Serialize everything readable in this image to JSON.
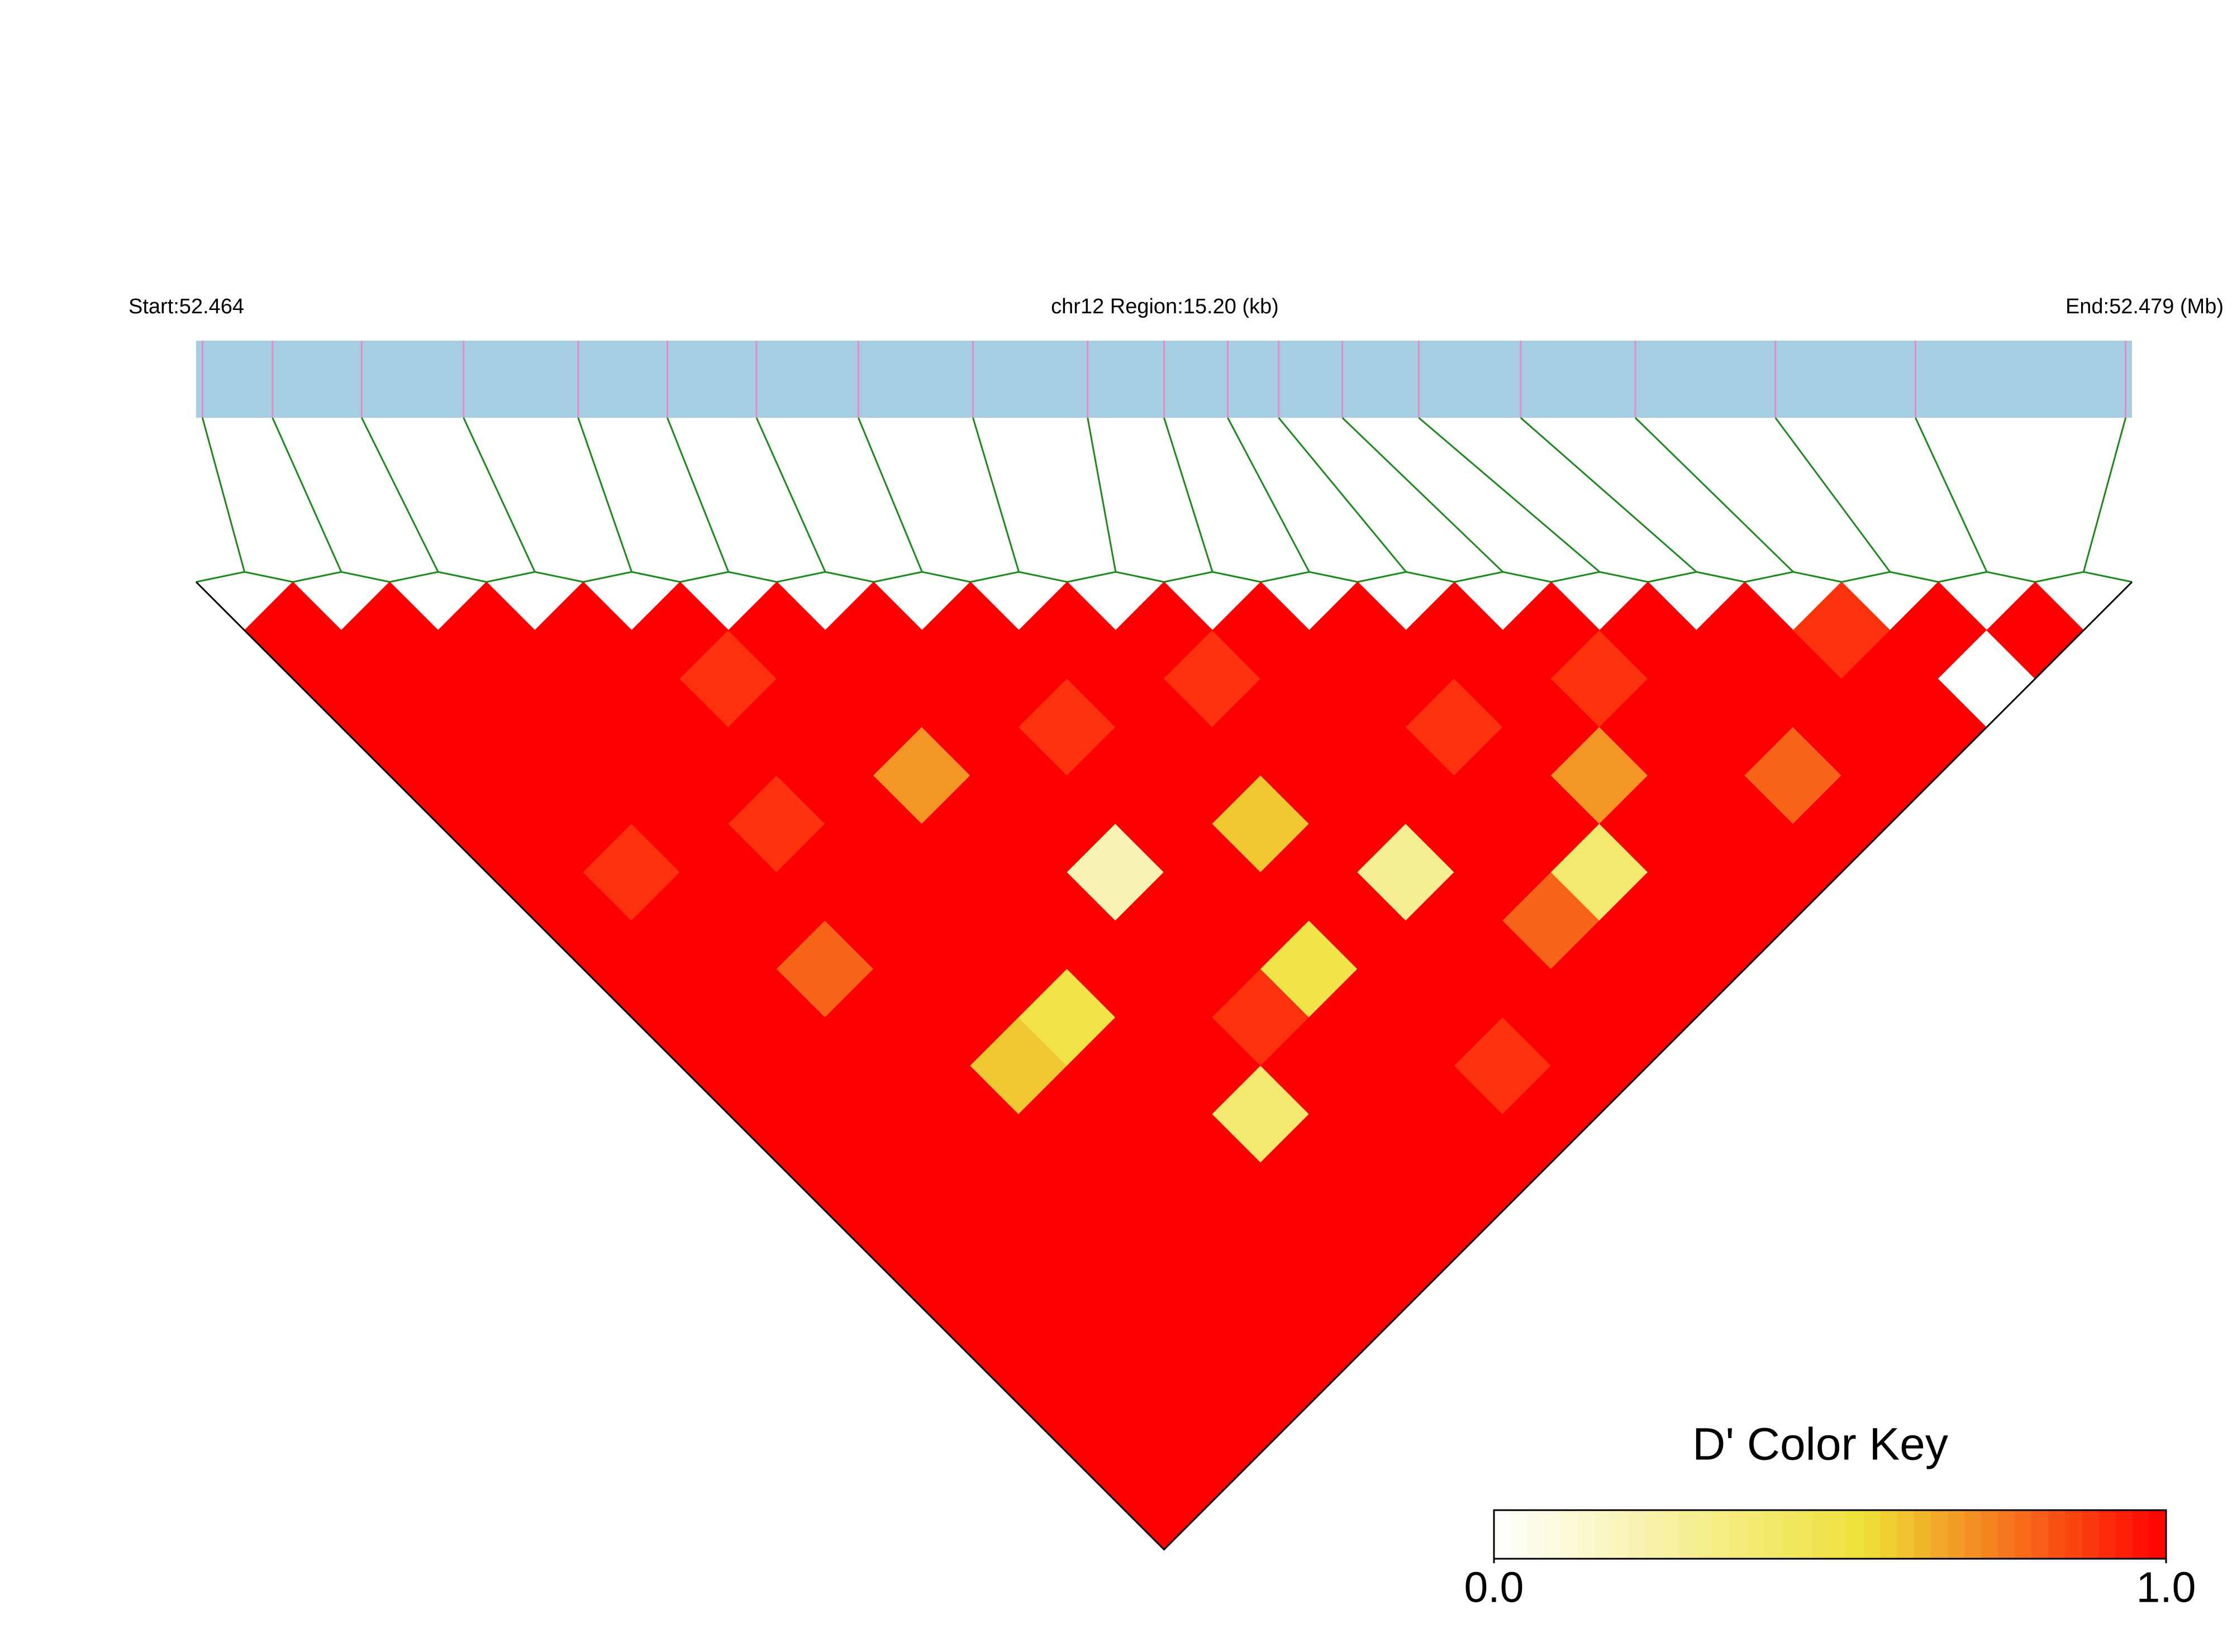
{
  "chart_data": {
    "type": "ld_heatmap",
    "start_label": "Start:52.464",
    "title": "chr12 Region:15.20 (kb)",
    "end_label": "End:52.479 (Mb)",
    "xlim": [
      0,
      15.2
    ],
    "positions": [
      0.05,
      0.6,
      1.3,
      2.1,
      3.0,
      3.7,
      4.4,
      5.2,
      6.1,
      7.0,
      7.6,
      8.1,
      8.5,
      9.0,
      9.6,
      10.4,
      11.3,
      12.4,
      13.5,
      15.15
    ],
    "dprime": [
      [
        1,
        1,
        1,
        1,
        1,
        1,
        1,
        1,
        1,
        1,
        1,
        1,
        1,
        1,
        1,
        1,
        1,
        1,
        1
      ],
      [
        1,
        1,
        1,
        1,
        1,
        0.9,
        1,
        1,
        1,
        1,
        1,
        1,
        1,
        1,
        1,
        1,
        1,
        1
      ],
      [
        1,
        1,
        1,
        1,
        1,
        1,
        1,
        0.8,
        1,
        1,
        1,
        1,
        1,
        1,
        1,
        1,
        1
      ],
      [
        1,
        1,
        1,
        1,
        0.9,
        1,
        1,
        1,
        1,
        0.6,
        1,
        1,
        1,
        1,
        1,
        1
      ],
      [
        1,
        0.9,
        1,
        1,
        1,
        1,
        1,
        1,
        0.5,
        1,
        1,
        1,
        1,
        1,
        1
      ],
      [
        1,
        1,
        1,
        0.7,
        1,
        1,
        1,
        1,
        1,
        1,
        0.4,
        1,
        1,
        1
      ],
      [
        1,
        1,
        1,
        1,
        1,
        0.2,
        1,
        1,
        0.9,
        1,
        1,
        1,
        1
      ],
      [
        1,
        1,
        0.9,
        1,
        1,
        1,
        1,
        0.5,
        1,
        1,
        1,
        1
      ],
      [
        1,
        1,
        1,
        1,
        0.6,
        1,
        1,
        1,
        1,
        0.9,
        1
      ],
      [
        1,
        0.9,
        1,
        1,
        1,
        0.3,
        1,
        1,
        1,
        1
      ],
      [
        1,
        1,
        1,
        1,
        1,
        1,
        0.8,
        1,
        1
      ],
      [
        1,
        1,
        0.9,
        1,
        1,
        0.4,
        1,
        1
      ],
      [
        1,
        1,
        1,
        0.7,
        1,
        1,
        1
      ],
      [
        1,
        0.9,
        1,
        1,
        1,
        1
      ],
      [
        1,
        1,
        1,
        0.8,
        1
      ],
      [
        1,
        1,
        1,
        1
      ],
      [
        0.9,
        1,
        1
      ],
      [
        1,
        0
      ],
      [
        1
      ]
    ],
    "colorkey": {
      "title": "D' Color Key",
      "range": [
        0,
        1
      ],
      "ticks": [
        {
          "value": 0,
          "label": "0.0"
        },
        {
          "value": 1,
          "label": "1.0"
        }
      ]
    }
  }
}
